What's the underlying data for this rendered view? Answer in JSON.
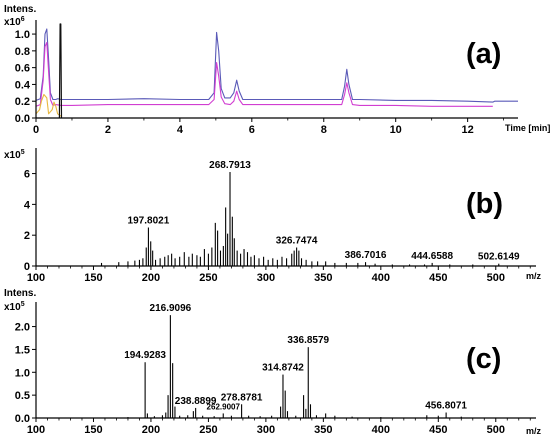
{
  "chart_data": [
    {
      "type": "line",
      "panel": "(a)",
      "ylabel": "Intens.",
      "y_multiplier_base": "x10",
      "y_multiplier_exp": "6",
      "xlabel": "Time [min]",
      "xlim": [
        0,
        13.4
      ],
      "ylim": [
        0,
        1.12
      ],
      "x_ticks": [
        0,
        2,
        4,
        6,
        8,
        10,
        12
      ],
      "y_ticks": [
        0.0,
        0.2,
        0.4,
        0.6,
        0.8,
        1.0
      ],
      "series": [
        {
          "color": "#5a5ab8",
          "x": [
            0.0,
            0.12,
            0.2,
            0.25,
            0.3,
            0.35,
            0.4,
            0.47,
            0.55,
            0.6,
            0.7,
            1.0,
            1.5,
            2.0,
            3.0,
            4.0,
            4.8,
            4.95,
            5.02,
            5.08,
            5.15,
            5.25,
            5.4,
            5.5,
            5.58,
            5.65,
            5.75,
            6.0,
            7.0,
            8.0,
            8.5,
            8.58,
            8.64,
            8.7,
            8.8,
            9.0,
            10.0,
            11.0,
            12.0,
            12.7,
            12.75,
            13.4
          ],
          "y": [
            0.21,
            0.23,
            0.5,
            1.0,
            1.06,
            0.7,
            0.3,
            0.22,
            0.22,
            0.23,
            0.22,
            0.22,
            0.22,
            0.22,
            0.23,
            0.22,
            0.22,
            0.3,
            1.02,
            0.8,
            0.35,
            0.24,
            0.24,
            0.3,
            0.45,
            0.32,
            0.22,
            0.22,
            0.22,
            0.22,
            0.22,
            0.38,
            0.58,
            0.4,
            0.22,
            0.22,
            0.21,
            0.21,
            0.2,
            0.19,
            0.2,
            0.2
          ]
        },
        {
          "color": "#d13ed1",
          "x": [
            0.0,
            0.12,
            0.2,
            0.25,
            0.3,
            0.35,
            0.4,
            0.47,
            0.55,
            0.7,
            1.0,
            2.0,
            3.0,
            4.0,
            4.8,
            4.95,
            5.02,
            5.08,
            5.15,
            5.25,
            5.4,
            5.5,
            5.58,
            5.65,
            5.75,
            6.0,
            7.0,
            8.0,
            8.5,
            8.58,
            8.64,
            8.7,
            8.8,
            9.0,
            10.0,
            11.0,
            12.0,
            12.7
          ],
          "y": [
            0.14,
            0.16,
            0.45,
            0.85,
            0.9,
            0.55,
            0.22,
            0.15,
            0.16,
            0.15,
            0.15,
            0.16,
            0.16,
            0.16,
            0.16,
            0.22,
            0.66,
            0.5,
            0.25,
            0.17,
            0.16,
            0.2,
            0.32,
            0.22,
            0.16,
            0.16,
            0.16,
            0.16,
            0.16,
            0.28,
            0.42,
            0.3,
            0.16,
            0.15,
            0.15,
            0.14,
            0.14,
            0.14
          ]
        },
        {
          "color": "#e8b840",
          "x": [
            0.0,
            0.1,
            0.15,
            0.22,
            0.3,
            0.35,
            0.45,
            0.5,
            0.55,
            0.6,
            0.7
          ],
          "y": [
            0.05,
            0.1,
            0.2,
            0.28,
            0.24,
            0.05,
            0.1,
            0.19,
            0.14,
            0.05,
            0.02
          ]
        },
        {
          "color": "#111111",
          "x": [
            0.65,
            0.67,
            0.69,
            0.71
          ],
          "y": [
            0.0,
            1.12,
            1.12,
            0.0
          ]
        }
      ]
    },
    {
      "type": "bar",
      "panel": "(b)",
      "ylabel": "",
      "y_multiplier_base": "x10",
      "y_multiplier_exp": "5",
      "xlabel": "m/z",
      "xlim": [
        100,
        535
      ],
      "ylim": [
        0,
        7.4
      ],
      "x_ticks": [
        100,
        150,
        200,
        250,
        300,
        350,
        400,
        450,
        500
      ],
      "y_ticks": [
        0,
        2,
        4,
        6
      ],
      "peaks": [
        {
          "mz": 157.0,
          "intensity": 0.2
        },
        {
          "mz": 172.0,
          "intensity": 0.25
        },
        {
          "mz": 180.0,
          "intensity": 0.3
        },
        {
          "mz": 186.0,
          "intensity": 0.35
        },
        {
          "mz": 190.0,
          "intensity": 0.4
        },
        {
          "mz": 193.0,
          "intensity": 0.5
        },
        {
          "mz": 195.9,
          "intensity": 1.2
        },
        {
          "mz": 197.8021,
          "intensity": 2.5,
          "label": "197.8021"
        },
        {
          "mz": 199.8,
          "intensity": 1.6
        },
        {
          "mz": 201.5,
          "intensity": 1.0
        },
        {
          "mz": 204.0,
          "intensity": 0.4
        },
        {
          "mz": 208.0,
          "intensity": 0.5
        },
        {
          "mz": 212.0,
          "intensity": 0.6
        },
        {
          "mz": 215.0,
          "intensity": 0.7
        },
        {
          "mz": 218.0,
          "intensity": 0.8
        },
        {
          "mz": 221.0,
          "intensity": 0.5
        },
        {
          "mz": 225.0,
          "intensity": 0.6
        },
        {
          "mz": 229.0,
          "intensity": 0.9
        },
        {
          "mz": 233.0,
          "intensity": 0.6
        },
        {
          "mz": 236.0,
          "intensity": 0.8
        },
        {
          "mz": 240.0,
          "intensity": 0.7
        },
        {
          "mz": 243.0,
          "intensity": 0.6
        },
        {
          "mz": 246.5,
          "intensity": 1.1
        },
        {
          "mz": 250.0,
          "intensity": 0.8
        },
        {
          "mz": 253.0,
          "intensity": 1.2
        },
        {
          "mz": 256.0,
          "intensity": 2.8
        },
        {
          "mz": 258.0,
          "intensity": 2.3
        },
        {
          "mz": 260.5,
          "intensity": 1.0
        },
        {
          "mz": 263.0,
          "intensity": 1.3
        },
        {
          "mz": 265.0,
          "intensity": 3.8
        },
        {
          "mz": 266.7,
          "intensity": 2.1
        },
        {
          "mz": 268.7913,
          "intensity": 6.1,
          "label": "268.7913"
        },
        {
          "mz": 270.8,
          "intensity": 3.2
        },
        {
          "mz": 272.5,
          "intensity": 1.8
        },
        {
          "mz": 275.0,
          "intensity": 1.0
        },
        {
          "mz": 278.0,
          "intensity": 0.8
        },
        {
          "mz": 281.0,
          "intensity": 1.1
        },
        {
          "mz": 284.0,
          "intensity": 0.9
        },
        {
          "mz": 287.0,
          "intensity": 0.6
        },
        {
          "mz": 290.0,
          "intensity": 0.7
        },
        {
          "mz": 294.0,
          "intensity": 0.5
        },
        {
          "mz": 298.0,
          "intensity": 0.6
        },
        {
          "mz": 302.0,
          "intensity": 0.4
        },
        {
          "mz": 306.0,
          "intensity": 0.5
        },
        {
          "mz": 310.0,
          "intensity": 0.4
        },
        {
          "mz": 314.0,
          "intensity": 0.6
        },
        {
          "mz": 318.0,
          "intensity": 0.5
        },
        {
          "mz": 322.5,
          "intensity": 0.8
        },
        {
          "mz": 324.6,
          "intensity": 1.0
        },
        {
          "mz": 326.7474,
          "intensity": 1.2,
          "label": "326.7474"
        },
        {
          "mz": 328.7,
          "intensity": 1.0
        },
        {
          "mz": 331.0,
          "intensity": 0.5
        },
        {
          "mz": 335.0,
          "intensity": 0.4
        },
        {
          "mz": 340.0,
          "intensity": 0.3
        },
        {
          "mz": 345.0,
          "intensity": 0.3
        },
        {
          "mz": 352.0,
          "intensity": 0.3
        },
        {
          "mz": 360.0,
          "intensity": 0.2
        },
        {
          "mz": 370.0,
          "intensity": 0.2
        },
        {
          "mz": 380.0,
          "intensity": 0.2
        },
        {
          "mz": 386.7016,
          "intensity": 0.25,
          "label": "386.7016"
        },
        {
          "mz": 395.0,
          "intensity": 0.15
        },
        {
          "mz": 410.0,
          "intensity": 0.1
        },
        {
          "mz": 425.0,
          "intensity": 0.1
        },
        {
          "mz": 438.0,
          "intensity": 0.1
        },
        {
          "mz": 444.6588,
          "intensity": 0.2,
          "label": "444.6588"
        },
        {
          "mz": 460.0,
          "intensity": 0.1
        },
        {
          "mz": 480.0,
          "intensity": 0.1
        },
        {
          "mz": 502.6149,
          "intensity": 0.15,
          "label": "502.6149"
        }
      ]
    },
    {
      "type": "bar",
      "panel": "(c)",
      "ylabel": "Intens.",
      "y_multiplier_base": "x10",
      "y_multiplier_exp": "5",
      "xlabel": "m/z",
      "xlim": [
        100,
        535
      ],
      "ylim": [
        0,
        2.45
      ],
      "x_ticks": [
        100,
        150,
        200,
        250,
        300,
        350,
        400,
        450,
        500
      ],
      "y_ticks": [
        0.0,
        0.5,
        1.0,
        1.5,
        2.0
      ],
      "peaks": [
        {
          "mz": 180.0,
          "intensity": 0.02
        },
        {
          "mz": 194.9283,
          "intensity": 1.22,
          "label": "194.9283"
        },
        {
          "mz": 196.9,
          "intensity": 0.1
        },
        {
          "mz": 203.0,
          "intensity": 0.04
        },
        {
          "mz": 210.0,
          "intensity": 0.06
        },
        {
          "mz": 212.9,
          "intensity": 0.12
        },
        {
          "mz": 214.9,
          "intensity": 0.5
        },
        {
          "mz": 216.9096,
          "intensity": 2.25,
          "label": "216.9096"
        },
        {
          "mz": 218.9,
          "intensity": 1.2
        },
        {
          "mz": 220.9,
          "intensity": 0.25
        },
        {
          "mz": 225.0,
          "intensity": 0.05
        },
        {
          "mz": 232.0,
          "intensity": 0.06
        },
        {
          "mz": 236.9,
          "intensity": 0.15
        },
        {
          "mz": 238.8899,
          "intensity": 0.22,
          "label": "238.8899"
        },
        {
          "mz": 245.0,
          "intensity": 0.05
        },
        {
          "mz": 255.0,
          "intensity": 0.04
        },
        {
          "mz": 262.9007,
          "intensity": 0.1,
          "label": "262.9007"
        },
        {
          "mz": 270.0,
          "intensity": 0.05
        },
        {
          "mz": 278.8781,
          "intensity": 0.3,
          "label": "278.8781"
        },
        {
          "mz": 285.0,
          "intensity": 0.05
        },
        {
          "mz": 295.0,
          "intensity": 0.04
        },
        {
          "mz": 305.0,
          "intensity": 0.05
        },
        {
          "mz": 312.8,
          "intensity": 0.25
        },
        {
          "mz": 314.8742,
          "intensity": 0.95,
          "label": "314.8742"
        },
        {
          "mz": 316.8,
          "intensity": 0.6
        },
        {
          "mz": 318.8,
          "intensity": 0.15
        },
        {
          "mz": 326.0,
          "intensity": 0.05
        },
        {
          "mz": 332.8,
          "intensity": 0.5
        },
        {
          "mz": 334.8,
          "intensity": 0.2
        },
        {
          "mz": 336.8579,
          "intensity": 1.55,
          "label": "336.8579"
        },
        {
          "mz": 338.8,
          "intensity": 0.3
        },
        {
          "mz": 344.0,
          "intensity": 0.06
        },
        {
          "mz": 352.0,
          "intensity": 0.1
        },
        {
          "mz": 360.0,
          "intensity": 0.05
        },
        {
          "mz": 375.0,
          "intensity": 0.03
        },
        {
          "mz": 400.0,
          "intensity": 0.02
        },
        {
          "mz": 440.0,
          "intensity": 0.06
        },
        {
          "mz": 450.0,
          "intensity": 0.05
        },
        {
          "mz": 456.8071,
          "intensity": 0.12,
          "label": "456.8071"
        },
        {
          "mz": 470.0,
          "intensity": 0.03
        }
      ]
    }
  ]
}
